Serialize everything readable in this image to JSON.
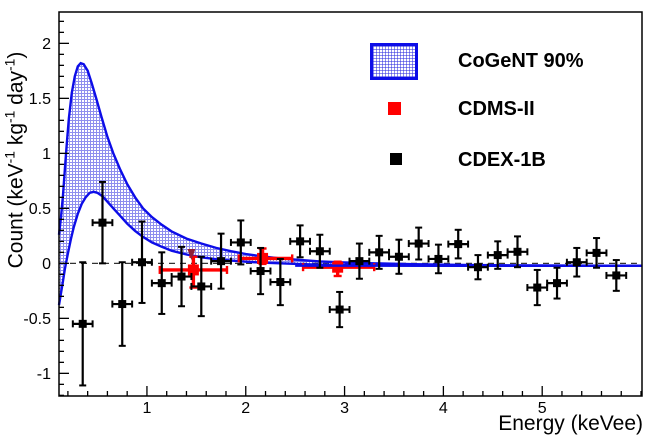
{
  "figure": {
    "background": "#ffffff",
    "frame_color": "#000000"
  },
  "axes": {
    "x_title": "Energy (keVee)",
    "y_title_parts": [
      {
        "t": "Count (keV"
      },
      {
        "t": "-1",
        "sup": true
      },
      {
        "t": " kg"
      },
      {
        "t": "-1",
        "sup": true
      },
      {
        "t": " day"
      },
      {
        "t": "-1",
        "sup": true
      },
      {
        "t": ")"
      }
    ],
    "x_tick_labels": [
      "1",
      "2",
      "3",
      "4",
      "5"
    ],
    "y_tick_labels": [
      "-1",
      "-0.5",
      "0",
      "0.5",
      "1",
      "1.5",
      "2"
    ]
  },
  "legend": {
    "items": [
      {
        "label": "CoGeNT 90%",
        "swatch": "blue-hatched-box"
      },
      {
        "label": "CDMS-II",
        "swatch": "red-square"
      },
      {
        "label": "CDEX-1B",
        "swatch": "black-square"
      }
    ]
  },
  "chart_data": {
    "type": "scatter",
    "title": "",
    "xlabel": "Energy (keVee)",
    "ylabel": "Count (keV^-1 kg^-1 day^-1)",
    "xlim": [
      0.11,
      6.01
    ],
    "ylim": [
      -1.206,
      2.285
    ],
    "x_major_ticks": [
      1,
      2,
      3,
      4,
      5
    ],
    "x_minor_step": 0.2,
    "y_major_ticks": [
      -1,
      -0.5,
      0,
      0.5,
      1,
      1.5,
      2
    ],
    "y_minor_step": 0.1,
    "grid": false,
    "zero_line_dashed": true,
    "legend_position": "top-right",
    "colors": {
      "band": "#0d0de8",
      "cdms": "#ff0000",
      "cdex": "#000000",
      "arrow": "#8e1f3a",
      "zero_line": "#333333"
    },
    "series": [
      {
        "name": "CoGeNT 90%",
        "type": "band",
        "color": "#0d0de8",
        "upper": [
          [
            0.11,
            0.26
          ],
          [
            0.13,
            0.42
          ],
          [
            0.15,
            0.62
          ],
          [
            0.17,
            0.86
          ],
          [
            0.19,
            1.1
          ],
          [
            0.21,
            1.32
          ],
          [
            0.24,
            1.55
          ],
          [
            0.27,
            1.7
          ],
          [
            0.3,
            1.79
          ],
          [
            0.33,
            1.82
          ],
          [
            0.36,
            1.81
          ],
          [
            0.4,
            1.75
          ],
          [
            0.44,
            1.64
          ],
          [
            0.49,
            1.49
          ],
          [
            0.54,
            1.33
          ],
          [
            0.6,
            1.15
          ],
          [
            0.66,
            1.0
          ],
          [
            0.73,
            0.85
          ],
          [
            0.8,
            0.72
          ],
          [
            0.88,
            0.6
          ],
          [
            0.96,
            0.5
          ],
          [
            1.05,
            0.42
          ],
          [
            1.15,
            0.35
          ],
          [
            1.25,
            0.29
          ],
          [
            1.4,
            0.225
          ],
          [
            1.55,
            0.18
          ],
          [
            1.7,
            0.14
          ],
          [
            1.85,
            0.11
          ],
          [
            2.0,
            0.085
          ],
          [
            2.15,
            0.065
          ],
          [
            2.35,
            0.045
          ],
          [
            2.55,
            0.03
          ],
          [
            2.75,
            0.018
          ],
          [
            3.0,
            0.008
          ],
          [
            3.3,
            0.0
          ],
          [
            3.7,
            -0.008
          ],
          [
            4.2,
            -0.015
          ],
          [
            5.0,
            -0.02
          ],
          [
            6.01,
            -0.022
          ]
        ],
        "lower": [
          [
            0.11,
            -0.38
          ],
          [
            0.13,
            -0.27
          ],
          [
            0.15,
            -0.16
          ],
          [
            0.17,
            -0.05
          ],
          [
            0.2,
            0.09
          ],
          [
            0.23,
            0.22
          ],
          [
            0.26,
            0.33
          ],
          [
            0.3,
            0.45
          ],
          [
            0.34,
            0.54
          ],
          [
            0.38,
            0.6
          ],
          [
            0.42,
            0.64
          ],
          [
            0.46,
            0.65
          ],
          [
            0.5,
            0.64
          ],
          [
            0.55,
            0.61
          ],
          [
            0.6,
            0.56
          ],
          [
            0.66,
            0.5
          ],
          [
            0.73,
            0.43
          ],
          [
            0.8,
            0.36
          ],
          [
            0.88,
            0.295
          ],
          [
            0.96,
            0.24
          ],
          [
            1.05,
            0.19
          ],
          [
            1.15,
            0.15
          ],
          [
            1.25,
            0.115
          ],
          [
            1.4,
            0.08
          ],
          [
            1.55,
            0.055
          ],
          [
            1.7,
            0.038
          ],
          [
            1.85,
            0.025
          ],
          [
            2.0,
            0.015
          ],
          [
            2.15,
            0.007
          ],
          [
            2.35,
            0.0
          ],
          [
            2.55,
            -0.007
          ],
          [
            2.75,
            -0.012
          ],
          [
            3.0,
            -0.016
          ],
          [
            3.3,
            -0.019
          ],
          [
            3.7,
            -0.021
          ],
          [
            4.2,
            -0.022
          ],
          [
            5.0,
            -0.022
          ],
          [
            6.01,
            -0.022
          ]
        ]
      },
      {
        "name": "CDMS-II",
        "type": "scatter",
        "color": "#ff0000",
        "points": [
          {
            "x": 1.47,
            "xlo": 1.13,
            "xhi": 1.81,
            "y": -0.06,
            "eyp": 0.12,
            "eym": 0.16
          },
          {
            "x": 2.17,
            "xlo": 1.93,
            "xhi": 2.47,
            "y": 0.045,
            "eyp": 0.09,
            "eym": 0.05
          },
          {
            "x": 2.93,
            "xlo": 2.58,
            "xhi": 3.3,
            "y": -0.035,
            "eyp": 0.05,
            "eym": 0.08
          }
        ]
      },
      {
        "name": "CDEX-1B",
        "type": "scatter",
        "color": "#000000",
        "xerr": 0.1,
        "points": [
          {
            "x": 0.35,
            "y": -0.55,
            "ey": 0.56
          },
          {
            "x": 0.55,
            "y": 0.37,
            "ey": 0.37
          },
          {
            "x": 0.75,
            "y": -0.37,
            "ey": 0.38
          },
          {
            "x": 0.95,
            "y": 0.01,
            "ey": 0.37
          },
          {
            "x": 1.15,
            "y": -0.18,
            "ey": 0.28
          },
          {
            "x": 1.35,
            "y": -0.12,
            "ey": 0.27
          },
          {
            "x": 1.55,
            "y": -0.21,
            "ey": 0.27
          },
          {
            "x": 1.75,
            "y": 0.02,
            "ey": 0.25
          },
          {
            "x": 1.95,
            "y": 0.19,
            "ey": 0.2
          },
          {
            "x": 2.15,
            "y": -0.07,
            "ey": 0.21
          },
          {
            "x": 2.35,
            "y": -0.17,
            "ey": 0.21
          },
          {
            "x": 2.55,
            "y": 0.2,
            "ey": 0.145
          },
          {
            "x": 2.75,
            "y": 0.11,
            "ey": 0.15
          },
          {
            "x": 2.95,
            "y": -0.42,
            "ey": 0.16
          },
          {
            "x": 3.15,
            "y": 0.02,
            "ey": 0.16
          },
          {
            "x": 3.35,
            "y": 0.1,
            "ey": 0.15
          },
          {
            "x": 3.55,
            "y": 0.06,
            "ey": 0.155
          },
          {
            "x": 3.75,
            "y": 0.18,
            "ey": 0.145
          },
          {
            "x": 3.95,
            "y": 0.04,
            "ey": 0.13
          },
          {
            "x": 4.15,
            "y": 0.175,
            "ey": 0.13
          },
          {
            "x": 4.35,
            "y": -0.035,
            "ey": 0.11
          },
          {
            "x": 4.55,
            "y": 0.075,
            "ey": 0.125
          },
          {
            "x": 4.75,
            "y": 0.105,
            "ey": 0.14
          },
          {
            "x": 4.95,
            "y": -0.22,
            "ey": 0.16
          },
          {
            "x": 5.15,
            "y": -0.18,
            "ey": 0.14
          },
          {
            "x": 5.35,
            "y": 0.01,
            "ey": 0.13
          },
          {
            "x": 5.55,
            "y": 0.095,
            "ey": 0.135
          },
          {
            "x": 5.75,
            "y": -0.11,
            "ey": 0.14
          }
        ]
      }
    ],
    "annotations": [
      {
        "type": "down-arrow",
        "x": 1.45,
        "y_top": 0.13,
        "y_tip": 0.03,
        "color": "#8e1f3a"
      }
    ]
  }
}
